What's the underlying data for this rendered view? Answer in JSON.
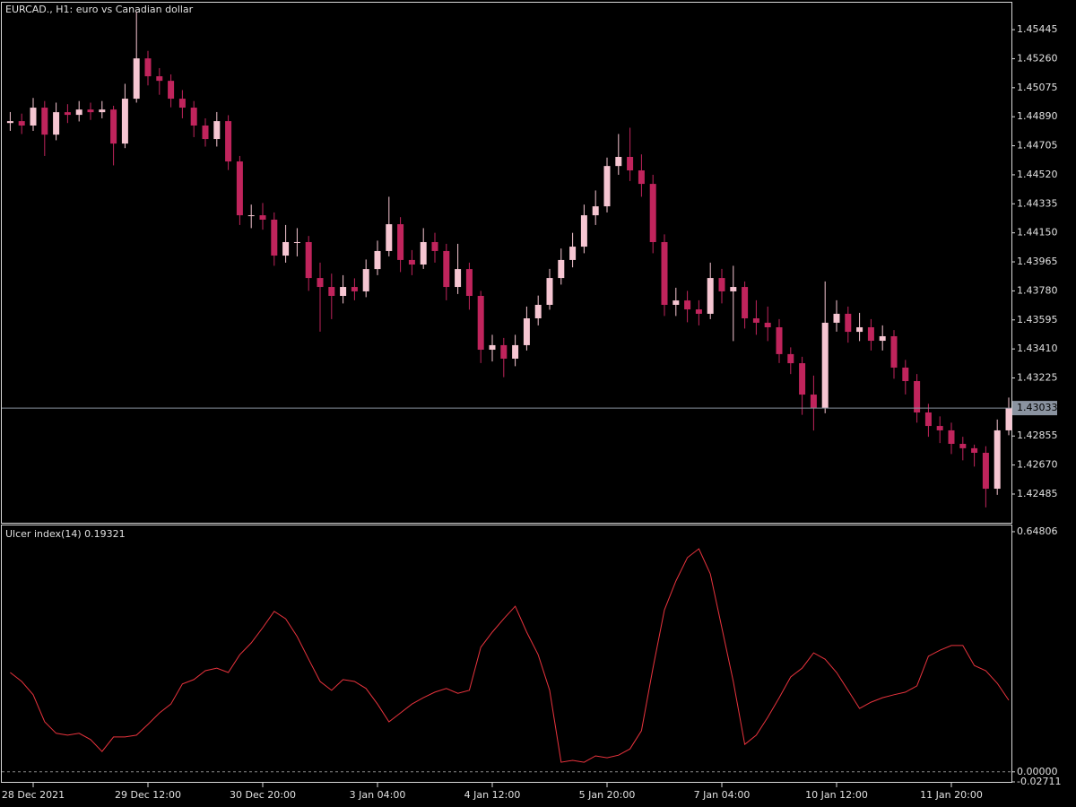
{
  "chart_data": [
    {
      "type": "candlestick",
      "title": "EURCAD., H1:  euro vs Canadian dollar",
      "categories": [
        null,
        null,
        "28 Dec 2021",
        null,
        null,
        null,
        null,
        null,
        null,
        null,
        null,
        null,
        "29 Dec 12:00",
        null,
        null,
        null,
        null,
        null,
        null,
        null,
        null,
        null,
        "30 Dec 20:00",
        null,
        null,
        null,
        null,
        null,
        null,
        null,
        null,
        null,
        "3 Jan 04:00",
        null,
        null,
        null,
        null,
        null,
        null,
        null,
        null,
        null,
        "4 Jan 12:00",
        null,
        null,
        null,
        null,
        null,
        null,
        null,
        null,
        null,
        "5 Jan 20:00",
        null,
        null,
        null,
        null,
        null,
        null,
        null,
        null,
        null,
        "7 Jan 04:00",
        null,
        null,
        null,
        null,
        null,
        null,
        null,
        null,
        null,
        "10 Jan 12:00",
        null,
        null,
        null,
        null,
        null,
        null,
        null,
        null,
        null,
        "11 Jan 20:00",
        null,
        null,
        null,
        null,
        null
      ],
      "open": [
        1.4485,
        1.44862,
        1.44834,
        1.44948,
        1.44776,
        1.44919,
        1.44902,
        1.44936,
        1.44919,
        1.44936,
        1.44719,
        1.45005,
        1.45262,
        1.45148,
        1.45119,
        1.45005,
        1.44948,
        1.44834,
        1.44748,
        1.44862,
        1.44605,
        1.44262,
        1.44262,
        1.44234,
        1.44005,
        1.44091,
        1.44091,
        1.43862,
        1.43805,
        1.43748,
        1.43805,
        1.43777,
        1.43919,
        1.44034,
        1.44205,
        1.43977,
        1.43948,
        1.44091,
        1.44034,
        1.43805,
        1.43919,
        1.43748,
        1.43405,
        1.43434,
        1.43348,
        1.43434,
        1.43605,
        1.43691,
        1.43862,
        1.43977,
        1.44062,
        1.44262,
        1.44319,
        1.44576,
        1.44634,
        1.44548,
        1.44462,
        1.44091,
        1.43691,
        1.43719,
        1.43662,
        1.43634,
        1.43862,
        1.43777,
        1.43805,
        1.43605,
        1.43577,
        1.43548,
        1.43377,
        1.43319,
        1.43119,
        1.43034,
        1.43577,
        1.43634,
        1.43519,
        1.43548,
        1.43462,
        1.43491,
        1.43291,
        1.43205,
        1.43005,
        1.42919,
        1.42891,
        1.42805,
        1.42777,
        1.42748,
        1.42519,
        1.42891
      ],
      "high": [
        1.4492,
        1.4491,
        1.4501,
        1.4499,
        1.4498,
        1.4497,
        1.4499,
        1.4498,
        1.4499,
        1.4496,
        1.451,
        1.4556,
        1.4531,
        1.452,
        1.4516,
        1.4506,
        1.4499,
        1.4488,
        1.4492,
        1.449,
        1.4464,
        1.4433,
        1.4434,
        1.4428,
        1.442,
        1.4418,
        1.4413,
        1.4396,
        1.4389,
        1.4388,
        1.4386,
        1.4398,
        1.441,
        1.4438,
        1.4425,
        1.4404,
        1.4418,
        1.4415,
        1.4408,
        1.4408,
        1.4396,
        1.4378,
        1.435,
        1.4348,
        1.435,
        1.4368,
        1.4375,
        1.4392,
        1.4405,
        1.4415,
        1.4433,
        1.4442,
        1.4463,
        1.4478,
        1.4482,
        1.4465,
        1.4452,
        1.4414,
        1.438,
        1.4378,
        1.4372,
        1.4396,
        1.4392,
        1.4394,
        1.4384,
        1.4372,
        1.4368,
        1.436,
        1.4342,
        1.4336,
        1.4324,
        1.4384,
        1.4372,
        1.4368,
        1.4364,
        1.436,
        1.4356,
        1.4353,
        1.4334,
        1.4325,
        1.4306,
        1.4298,
        1.4294,
        1.4285,
        1.428,
        1.4279,
        1.4296,
        1.431
      ],
      "low": [
        1.448,
        1.4478,
        1.448,
        1.4464,
        1.4474,
        1.4485,
        1.4486,
        1.4487,
        1.4488,
        1.4458,
        1.4469,
        1.4498,
        1.4509,
        1.4503,
        1.4495,
        1.4488,
        1.4476,
        1.447,
        1.447,
        1.4455,
        1.442,
        1.4418,
        1.4417,
        1.4394,
        1.4396,
        1.44,
        1.4378,
        1.4352,
        1.436,
        1.437,
        1.4372,
        1.4374,
        1.4388,
        1.44,
        1.439,
        1.4388,
        1.4392,
        1.4396,
        1.4372,
        1.4376,
        1.4366,
        1.4332,
        1.4333,
        1.4323,
        1.433,
        1.434,
        1.4356,
        1.4366,
        1.4382,
        1.4393,
        1.4402,
        1.442,
        1.4428,
        1.4452,
        1.4448,
        1.4438,
        1.4402,
        1.4362,
        1.4362,
        1.4358,
        1.4356,
        1.436,
        1.437,
        1.4346,
        1.4354,
        1.435,
        1.4346,
        1.4332,
        1.4325,
        1.4299,
        1.4289,
        1.43,
        1.4352,
        1.4345,
        1.4346,
        1.434,
        1.434,
        1.4322,
        1.4312,
        1.4294,
        1.4285,
        1.4281,
        1.4274,
        1.427,
        1.4266,
        1.424,
        1.4248,
        1.4286
      ],
      "close": [
        1.44862,
        1.44834,
        1.44948,
        1.44776,
        1.44919,
        1.44902,
        1.44936,
        1.44919,
        1.44936,
        1.44719,
        1.45005,
        1.45262,
        1.45148,
        1.45119,
        1.45005,
        1.44948,
        1.44834,
        1.44748,
        1.44862,
        1.44605,
        1.44262,
        1.44262,
        1.44234,
        1.44005,
        1.44091,
        1.44091,
        1.43862,
        1.43805,
        1.43748,
        1.43805,
        1.43777,
        1.43919,
        1.44034,
        1.44205,
        1.43977,
        1.43948,
        1.44091,
        1.44034,
        1.43805,
        1.43919,
        1.43748,
        1.43405,
        1.43434,
        1.43348,
        1.43434,
        1.43605,
        1.43691,
        1.43862,
        1.43977,
        1.44062,
        1.44262,
        1.44319,
        1.44576,
        1.44634,
        1.44548,
        1.44462,
        1.44091,
        1.43691,
        1.43719,
        1.43662,
        1.43634,
        1.43862,
        1.43777,
        1.43805,
        1.43605,
        1.43577,
        1.43548,
        1.43377,
        1.43319,
        1.43119,
        1.43034,
        1.43577,
        1.43634,
        1.43519,
        1.43548,
        1.43462,
        1.43491,
        1.43291,
        1.43205,
        1.43005,
        1.42919,
        1.42891,
        1.42805,
        1.42777,
        1.42748,
        1.42519,
        1.42891,
        1.43033
      ],
      "up_color": "#f6c6d2",
      "down_color": "#c0245c",
      "ylim": [
        1.42302,
        1.45617
      ],
      "yticks": [
        1.45445,
        {
          "value": 1.4526,
          "label": "1.45260"
        },
        1.45075,
        {
          "value": 1.4489,
          "label": "1.44890"
        },
        1.44705,
        {
          "value": 1.4452,
          "label": "1.44520"
        },
        1.44335,
        {
          "value": 1.4415,
          "label": "1.44150"
        },
        1.43965,
        {
          "value": 1.4378,
          "label": "1.43780"
        },
        1.43595,
        {
          "value": 1.4341,
          "label": "1.43410"
        },
        1.43225,
        1.42855,
        {
          "value": 1.4267,
          "label": "1.42670"
        },
        1.42485
      ],
      "current_price": 1.43033
    },
    {
      "type": "line",
      "title": "Ulcer index(14) 0.19321",
      "color": "#e8333d",
      "values": [
        0.268,
        0.244,
        0.208,
        0.135,
        0.104,
        0.099,
        0.104,
        0.087,
        0.055,
        0.094,
        0.094,
        0.099,
        0.128,
        0.159,
        0.183,
        0.237,
        0.249,
        0.273,
        0.28,
        0.268,
        0.316,
        0.348,
        0.389,
        0.433,
        0.413,
        0.365,
        0.304,
        0.244,
        0.22,
        0.249,
        0.244,
        0.225,
        0.183,
        0.135,
        0.159,
        0.183,
        0.2,
        0.215,
        0.225,
        0.212,
        0.22,
        0.336,
        0.377,
        0.413,
        0.447,
        0.377,
        0.316,
        0.22,
        0.026,
        0.031,
        0.026,
        0.043,
        0.038,
        0.045,
        0.062,
        0.111,
        0.28,
        0.437,
        0.515,
        0.578,
        0.602,
        0.534,
        0.389,
        0.244,
        0.074,
        0.099,
        0.147,
        0.2,
        0.256,
        0.28,
        0.321,
        0.304,
        0.268,
        0.22,
        0.171,
        0.188,
        0.2,
        0.208,
        0.215,
        0.232,
        0.312,
        0.328,
        0.341,
        0.341,
        0.287,
        0.273,
        0.239,
        0.19321
      ],
      "ylim": [
        -0.02711,
        0.6649
      ],
      "yticks": [
        0.64806,
        {
          "value": 0,
          "label": "0.00000"
        },
        -0.02711
      ]
    }
  ]
}
